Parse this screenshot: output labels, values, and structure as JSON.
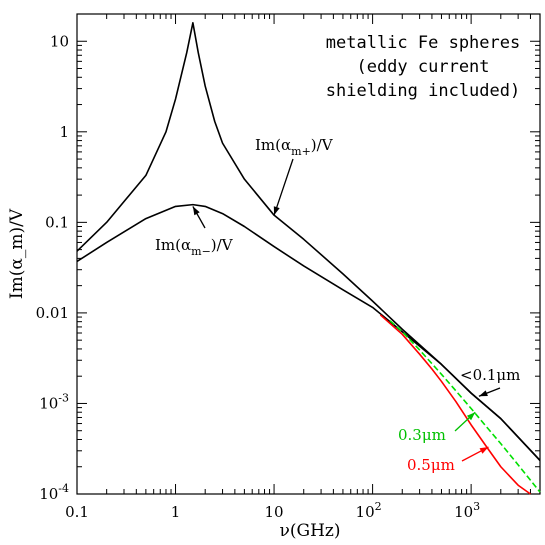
{
  "chart_data": {
    "type": "line",
    "title_lines": [
      "metallic Fe spheres",
      "(eddy current",
      "shielding included)"
    ],
    "xlabel": "ν(GHz)",
    "ylabel": "Im(α_m)/V",
    "x_scale": "log",
    "y_scale": "log",
    "xlim": [
      0.1,
      5000
    ],
    "ylim": [
      0.0001,
      20
    ],
    "x_ticks": [
      {
        "value": 0.1,
        "label": "0.1"
      },
      {
        "value": 1,
        "label": "1"
      },
      {
        "value": 10,
        "label": "10"
      },
      {
        "value": 100,
        "label": "10",
        "sup": "2"
      },
      {
        "value": 1000,
        "label": "10",
        "sup": "3"
      }
    ],
    "y_ticks": [
      {
        "value": 0.0001,
        "label": "10",
        "sup": "-4"
      },
      {
        "value": 0.001,
        "label": "10",
        "sup": "-3"
      },
      {
        "value": 0.01,
        "label": "0.01"
      },
      {
        "value": 0.1,
        "label": "0.1"
      },
      {
        "value": 1,
        "label": "1"
      },
      {
        "value": 10,
        "label": "10"
      }
    ],
    "series": [
      {
        "name": "Im(α_m+)/V",
        "color": "#000000",
        "x": [
          0.1,
          0.2,
          0.5,
          0.8,
          1.0,
          1.3,
          1.5,
          1.7,
          2.0,
          2.5,
          3.0,
          5.0,
          10,
          20,
          50,
          100,
          200,
          500,
          1000,
          2000,
          5000
        ],
        "y": [
          0.048,
          0.1,
          0.33,
          1.0,
          2.3,
          7.5,
          16,
          7.5,
          3.2,
          1.3,
          0.75,
          0.3,
          0.12,
          0.065,
          0.027,
          0.0135,
          0.0066,
          0.0027,
          0.0013,
          0.00068,
          0.000235
        ]
      },
      {
        "name": "Im(α_m−)/V",
        "color": "#000000",
        "x": [
          0.1,
          0.2,
          0.5,
          1.0,
          1.5,
          2.0,
          3.0,
          5.0,
          10,
          20,
          50,
          100,
          200,
          500,
          1000,
          2000,
          5000
        ],
        "y": [
          0.037,
          0.06,
          0.11,
          0.15,
          0.157,
          0.15,
          0.125,
          0.09,
          0.054,
          0.033,
          0.018,
          0.0115,
          0.0062,
          0.0027,
          0.0013,
          0.00068,
          0.000235
        ]
      },
      {
        "name": "0.3μm",
        "color": "#00e000",
        "dash": "6,3",
        "x": [
          150,
          200,
          300,
          500,
          700,
          1000,
          1500,
          2000,
          3000,
          5000
        ],
        "y": [
          0.0082,
          0.0062,
          0.0039,
          0.0021,
          0.00138,
          0.00088,
          0.00052,
          0.00036,
          0.00021,
          0.000105
        ]
      },
      {
        "name": "0.5μm",
        "color": "#ff0000",
        "x": [
          120,
          200,
          300,
          400,
          500,
          700,
          1000,
          1500,
          2000,
          3000,
          4000
        ],
        "y": [
          0.0095,
          0.0058,
          0.0035,
          0.0024,
          0.00175,
          0.00105,
          0.00058,
          0.00031,
          0.0002,
          0.000125,
          0.0001
        ]
      }
    ],
    "annotations": [
      {
        "text": "Im(α",
        "sub": "m+",
        "tail": ")/V",
        "color": "#000000",
        "arrow_to": [
          10,
          0.12
        ]
      },
      {
        "text": "Im(α",
        "sub": "m−",
        "tail": ")/V",
        "color": "#000000",
        "arrow_to": [
          1.5,
          0.15
        ]
      },
      {
        "text": "<0.1μm",
        "color": "#000000",
        "arrow_to": [
          1200,
          0.0012
        ]
      },
      {
        "text": "0.3μm",
        "color": "#00c000",
        "arrow_to": [
          1100,
          0.0008
        ]
      },
      {
        "text": "0.5μm",
        "color": "#ff0000",
        "arrow_to": [
          1500,
          0.00033
        ]
      }
    ]
  }
}
